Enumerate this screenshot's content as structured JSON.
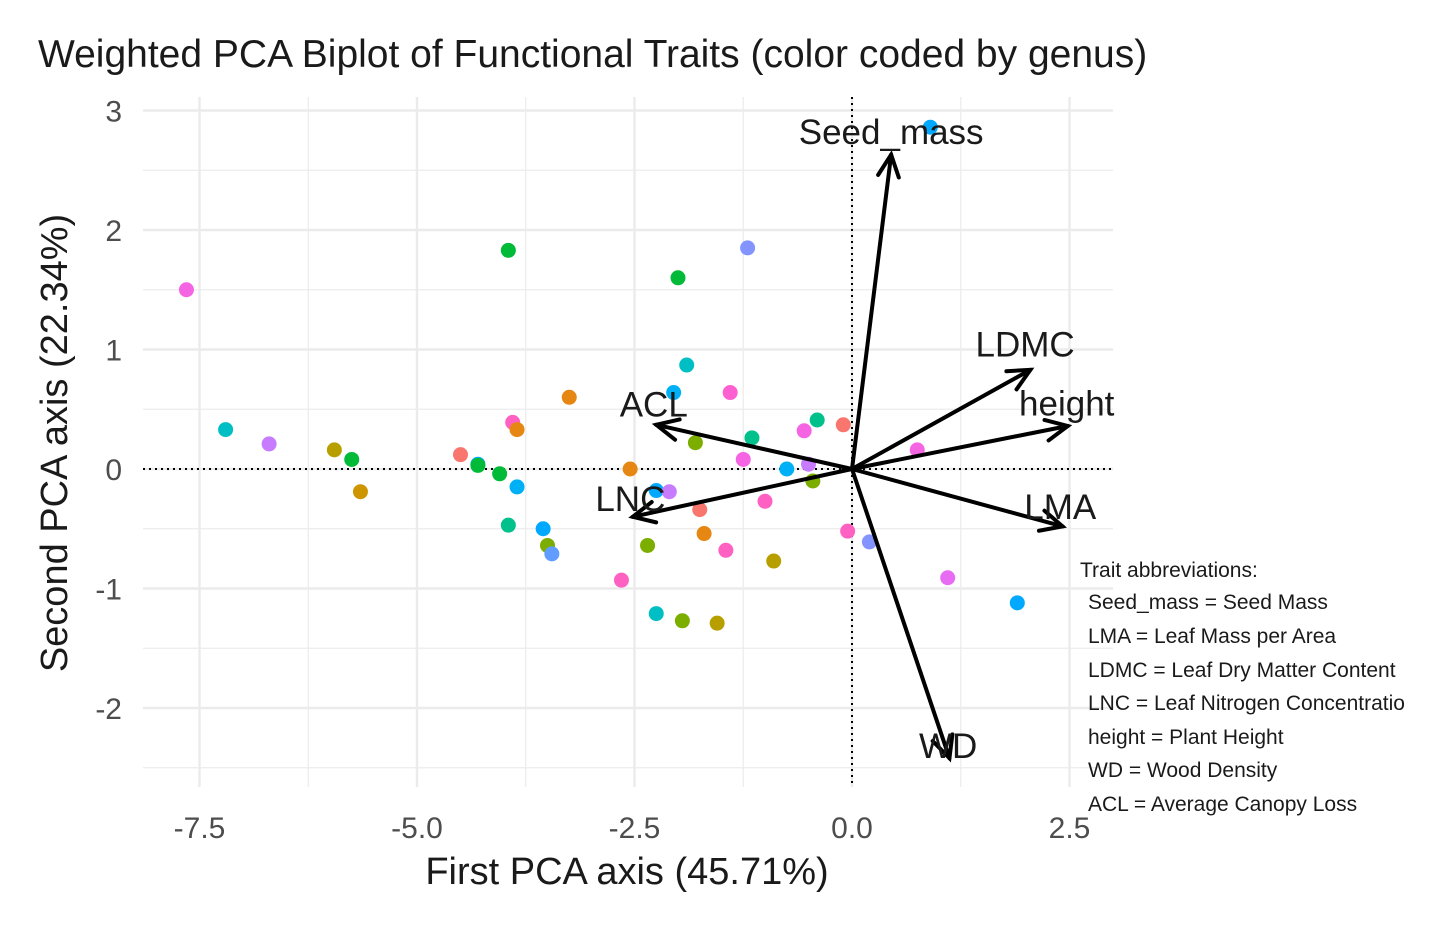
{
  "chart_data": {
    "type": "scatter",
    "title": "Weighted PCA Biplot of Functional Traits (color coded by genus)",
    "xlabel": "First PCA axis (45.71%)",
    "ylabel": "Second PCA axis (22.34%)",
    "xlim": [
      -8.4,
      3.0
    ],
    "ylim": [
      -2.6,
      3.1
    ],
    "x_ticks": [
      {
        "value": -7.5,
        "label": "-7.5"
      },
      {
        "value": -5.0,
        "label": "-5.0"
      },
      {
        "value": -2.5,
        "label": "-2.5"
      },
      {
        "value": 0.0,
        "label": "0.0"
      },
      {
        "value": 2.5,
        "label": "2.5"
      }
    ],
    "y_ticks": [
      {
        "value": 3,
        "label": "3"
      },
      {
        "value": 2,
        "label": "2"
      },
      {
        "value": 1,
        "label": "1"
      },
      {
        "value": 0,
        "label": "0"
      },
      {
        "value": -1,
        "label": "-1"
      },
      {
        "value": -2,
        "label": "-2"
      }
    ],
    "grid": true,
    "reference_lines": {
      "x": 0,
      "y": 0,
      "style": "dotted"
    },
    "points": [
      {
        "x": -7.65,
        "y": 1.5,
        "color": "#f564e3"
      },
      {
        "x": -7.2,
        "y": 0.33,
        "color": "#00bfc4"
      },
      {
        "x": -6.7,
        "y": 0.21,
        "color": "#c77cff"
      },
      {
        "x": -5.95,
        "y": 0.16,
        "color": "#b79f00"
      },
      {
        "x": -5.75,
        "y": 0.08,
        "color": "#00ba38"
      },
      {
        "x": -5.65,
        "y": -0.19,
        "color": "#cd9600"
      },
      {
        "x": -4.5,
        "y": 0.12,
        "color": "#f8766d"
      },
      {
        "x": -4.3,
        "y": 0.04,
        "color": "#00a9ff"
      },
      {
        "x": -4.3,
        "y": 0.03,
        "color": "#00ba38"
      },
      {
        "x": -4.05,
        "y": -0.04,
        "color": "#00ba38"
      },
      {
        "x": -3.95,
        "y": 1.83,
        "color": "#00ba38"
      },
      {
        "x": -3.95,
        "y": -0.47,
        "color": "#00c08b"
      },
      {
        "x": -3.9,
        "y": 0.39,
        "color": "#ff61c3"
      },
      {
        "x": -3.85,
        "y": 0.33,
        "color": "#e68613"
      },
      {
        "x": -3.85,
        "y": -0.15,
        "color": "#00b0f6"
      },
      {
        "x": -3.55,
        "y": -0.5,
        "color": "#00a9ff"
      },
      {
        "x": -3.5,
        "y": -0.64,
        "color": "#7cae00"
      },
      {
        "x": -3.45,
        "y": -0.71,
        "color": "#619cff"
      },
      {
        "x": -3.25,
        "y": 0.6,
        "color": "#e68613"
      },
      {
        "x": -2.65,
        "y": -0.93,
        "color": "#ff61c3"
      },
      {
        "x": -2.55,
        "y": 0.0,
        "color": "#e68613"
      },
      {
        "x": -2.35,
        "y": -0.64,
        "color": "#7cae00"
      },
      {
        "x": -2.25,
        "y": -0.18,
        "color": "#00a9ff"
      },
      {
        "x": -2.25,
        "y": -1.21,
        "color": "#00bfc4"
      },
      {
        "x": -2.1,
        "y": -0.19,
        "color": "#c77cff"
      },
      {
        "x": -2.05,
        "y": 0.64,
        "color": "#00b0f6"
      },
      {
        "x": -2.0,
        "y": 1.6,
        "color": "#00ba38"
      },
      {
        "x": -1.95,
        "y": -1.27,
        "color": "#7cae00"
      },
      {
        "x": -1.9,
        "y": 0.87,
        "color": "#00bfc4"
      },
      {
        "x": -1.8,
        "y": 0.22,
        "color": "#7cae00"
      },
      {
        "x": -1.75,
        "y": -0.34,
        "color": "#f8766d"
      },
      {
        "x": -1.7,
        "y": -0.54,
        "color": "#e68613"
      },
      {
        "x": -1.55,
        "y": -1.29,
        "color": "#b79f00"
      },
      {
        "x": -1.45,
        "y": -0.68,
        "color": "#ff61c3"
      },
      {
        "x": -1.4,
        "y": 0.64,
        "color": "#fd61d1"
      },
      {
        "x": -1.25,
        "y": 0.08,
        "color": "#f564e3"
      },
      {
        "x": -1.2,
        "y": 1.85,
        "color": "#8494ff"
      },
      {
        "x": -1.15,
        "y": 0.26,
        "color": "#00c08b"
      },
      {
        "x": -1.0,
        "y": -0.27,
        "color": "#ff61c3"
      },
      {
        "x": -0.9,
        "y": -0.77,
        "color": "#b79f00"
      },
      {
        "x": -0.75,
        "y": 0.0,
        "color": "#00b0f6"
      },
      {
        "x": -0.55,
        "y": 0.32,
        "color": "#f564e3"
      },
      {
        "x": -0.5,
        "y": 0.04,
        "color": "#c77cff"
      },
      {
        "x": -0.45,
        "y": -0.1,
        "color": "#7cae00"
      },
      {
        "x": -0.4,
        "y": 0.41,
        "color": "#00c08b"
      },
      {
        "x": -0.1,
        "y": 0.37,
        "color": "#f8766d"
      },
      {
        "x": -0.05,
        "y": -0.52,
        "color": "#ff61c3"
      },
      {
        "x": 0.2,
        "y": -0.61,
        "color": "#8494ff"
      },
      {
        "x": 0.75,
        "y": 0.16,
        "color": "#f564e3"
      },
      {
        "x": 0.9,
        "y": 2.86,
        "color": "#00a9ff"
      },
      {
        "x": 1.1,
        "y": -0.91,
        "color": "#e76bf3"
      },
      {
        "x": 1.9,
        "y": -1.12,
        "color": "#00a9ff"
      }
    ],
    "loadings": [
      {
        "name": "Seed_mass",
        "x": 0.45,
        "y": 2.63,
        "label_x": 0.45,
        "label_y": 2.82,
        "anchor": "middle"
      },
      {
        "name": "LDMC",
        "x": 2.05,
        "y": 0.83,
        "label_x": 1.42,
        "label_y": 1.04,
        "anchor": "start"
      },
      {
        "name": "height",
        "x": 2.48,
        "y": 0.36,
        "label_x": 1.92,
        "label_y": 0.55,
        "anchor": "start"
      },
      {
        "name": "LMA",
        "x": 2.42,
        "y": -0.48,
        "label_x": 1.98,
        "label_y": -0.32,
        "anchor": "start"
      },
      {
        "name": "WD",
        "x": 1.12,
        "y": -2.42,
        "label_x": 0.77,
        "label_y": -2.32,
        "anchor": "start"
      },
      {
        "name": "ACL",
        "x": -2.25,
        "y": 0.37,
        "label_x": -2.67,
        "label_y": 0.54,
        "anchor": "start"
      },
      {
        "name": "LNC",
        "x": -2.52,
        "y": -0.4,
        "label_x": -2.95,
        "label_y": -0.25,
        "anchor": "start"
      }
    ],
    "annotation": {
      "heading": "Trait abbreviations:",
      "lines": [
        "Seed_mass = Seed Mass",
        "LMA = Leaf Mass per Area",
        "LDMC = Leaf Dry Matter Content",
        "LNC = Leaf Nitrogen Concentratio",
        "height = Plant Height",
        "WD = Wood Density",
        "ACL = Average Canopy Loss"
      ]
    },
    "colors": {
      "grid": "#ebebeb",
      "arrow": "#000000",
      "reference": "#000000"
    }
  }
}
